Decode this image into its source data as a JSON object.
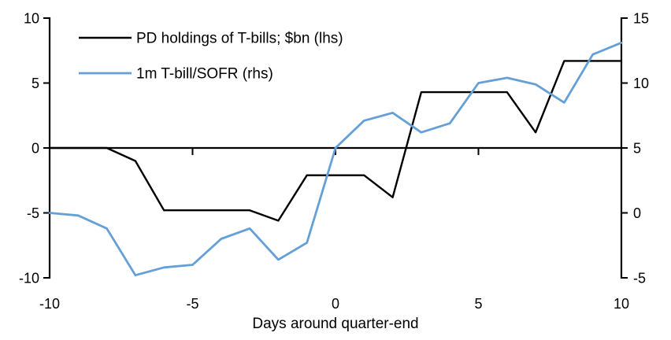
{
  "chart": {
    "legend": [
      {
        "label": "PD holdings of T-bills; $bn (lhs)",
        "color": "#000000"
      },
      {
        "label": "1m T-bill/SOFR (rhs)",
        "color": "#64A0D7"
      }
    ],
    "xlabel": "Days around quarter-end"
  },
  "chart_data": {
    "type": "line",
    "title": "",
    "xlabel": "Days around quarter-end",
    "x": [
      -10,
      -9,
      -8,
      -7,
      -6,
      -5,
      -4,
      -3,
      -2,
      -1,
      0,
      1,
      2,
      3,
      4,
      5,
      6,
      7,
      8,
      9,
      10
    ],
    "series": [
      {
        "name": "PD holdings of T-bills; $bn (lhs)",
        "axis": "lhs",
        "color": "#000000",
        "stroke_width": 2.4,
        "values": [
          0,
          0,
          0,
          -1.0,
          -4.8,
          -4.8,
          -4.8,
          -4.8,
          -5.6,
          -2.1,
          -2.1,
          -2.1,
          -3.8,
          4.3,
          4.3,
          4.3,
          4.3,
          1.2,
          6.7,
          6.7,
          6.7
        ]
      },
      {
        "name": "1m T-bill/SOFR (rhs)",
        "axis": "rhs",
        "color": "#64A0D7",
        "stroke_width": 2.8,
        "values": [
          0.0,
          -0.2,
          -1.2,
          -4.8,
          -4.2,
          -4.0,
          -2.0,
          -1.2,
          -3.6,
          -2.3,
          5.0,
          7.1,
          7.7,
          6.2,
          6.9,
          10.0,
          10.4,
          9.9,
          8.5,
          12.2,
          13.1
        ]
      }
    ],
    "left_axis": {
      "range": [
        -10,
        10
      ],
      "ticks": [
        10,
        5,
        0,
        -5,
        -10
      ]
    },
    "right_axis": {
      "range": [
        -5,
        15
      ],
      "ticks": [
        15,
        10,
        5,
        0,
        -5
      ]
    },
    "x_axis": {
      "range": [
        -10,
        10
      ],
      "ticks": [
        -10,
        -5,
        0,
        5,
        10
      ]
    },
    "grid": false,
    "legend_position": "top-left"
  }
}
